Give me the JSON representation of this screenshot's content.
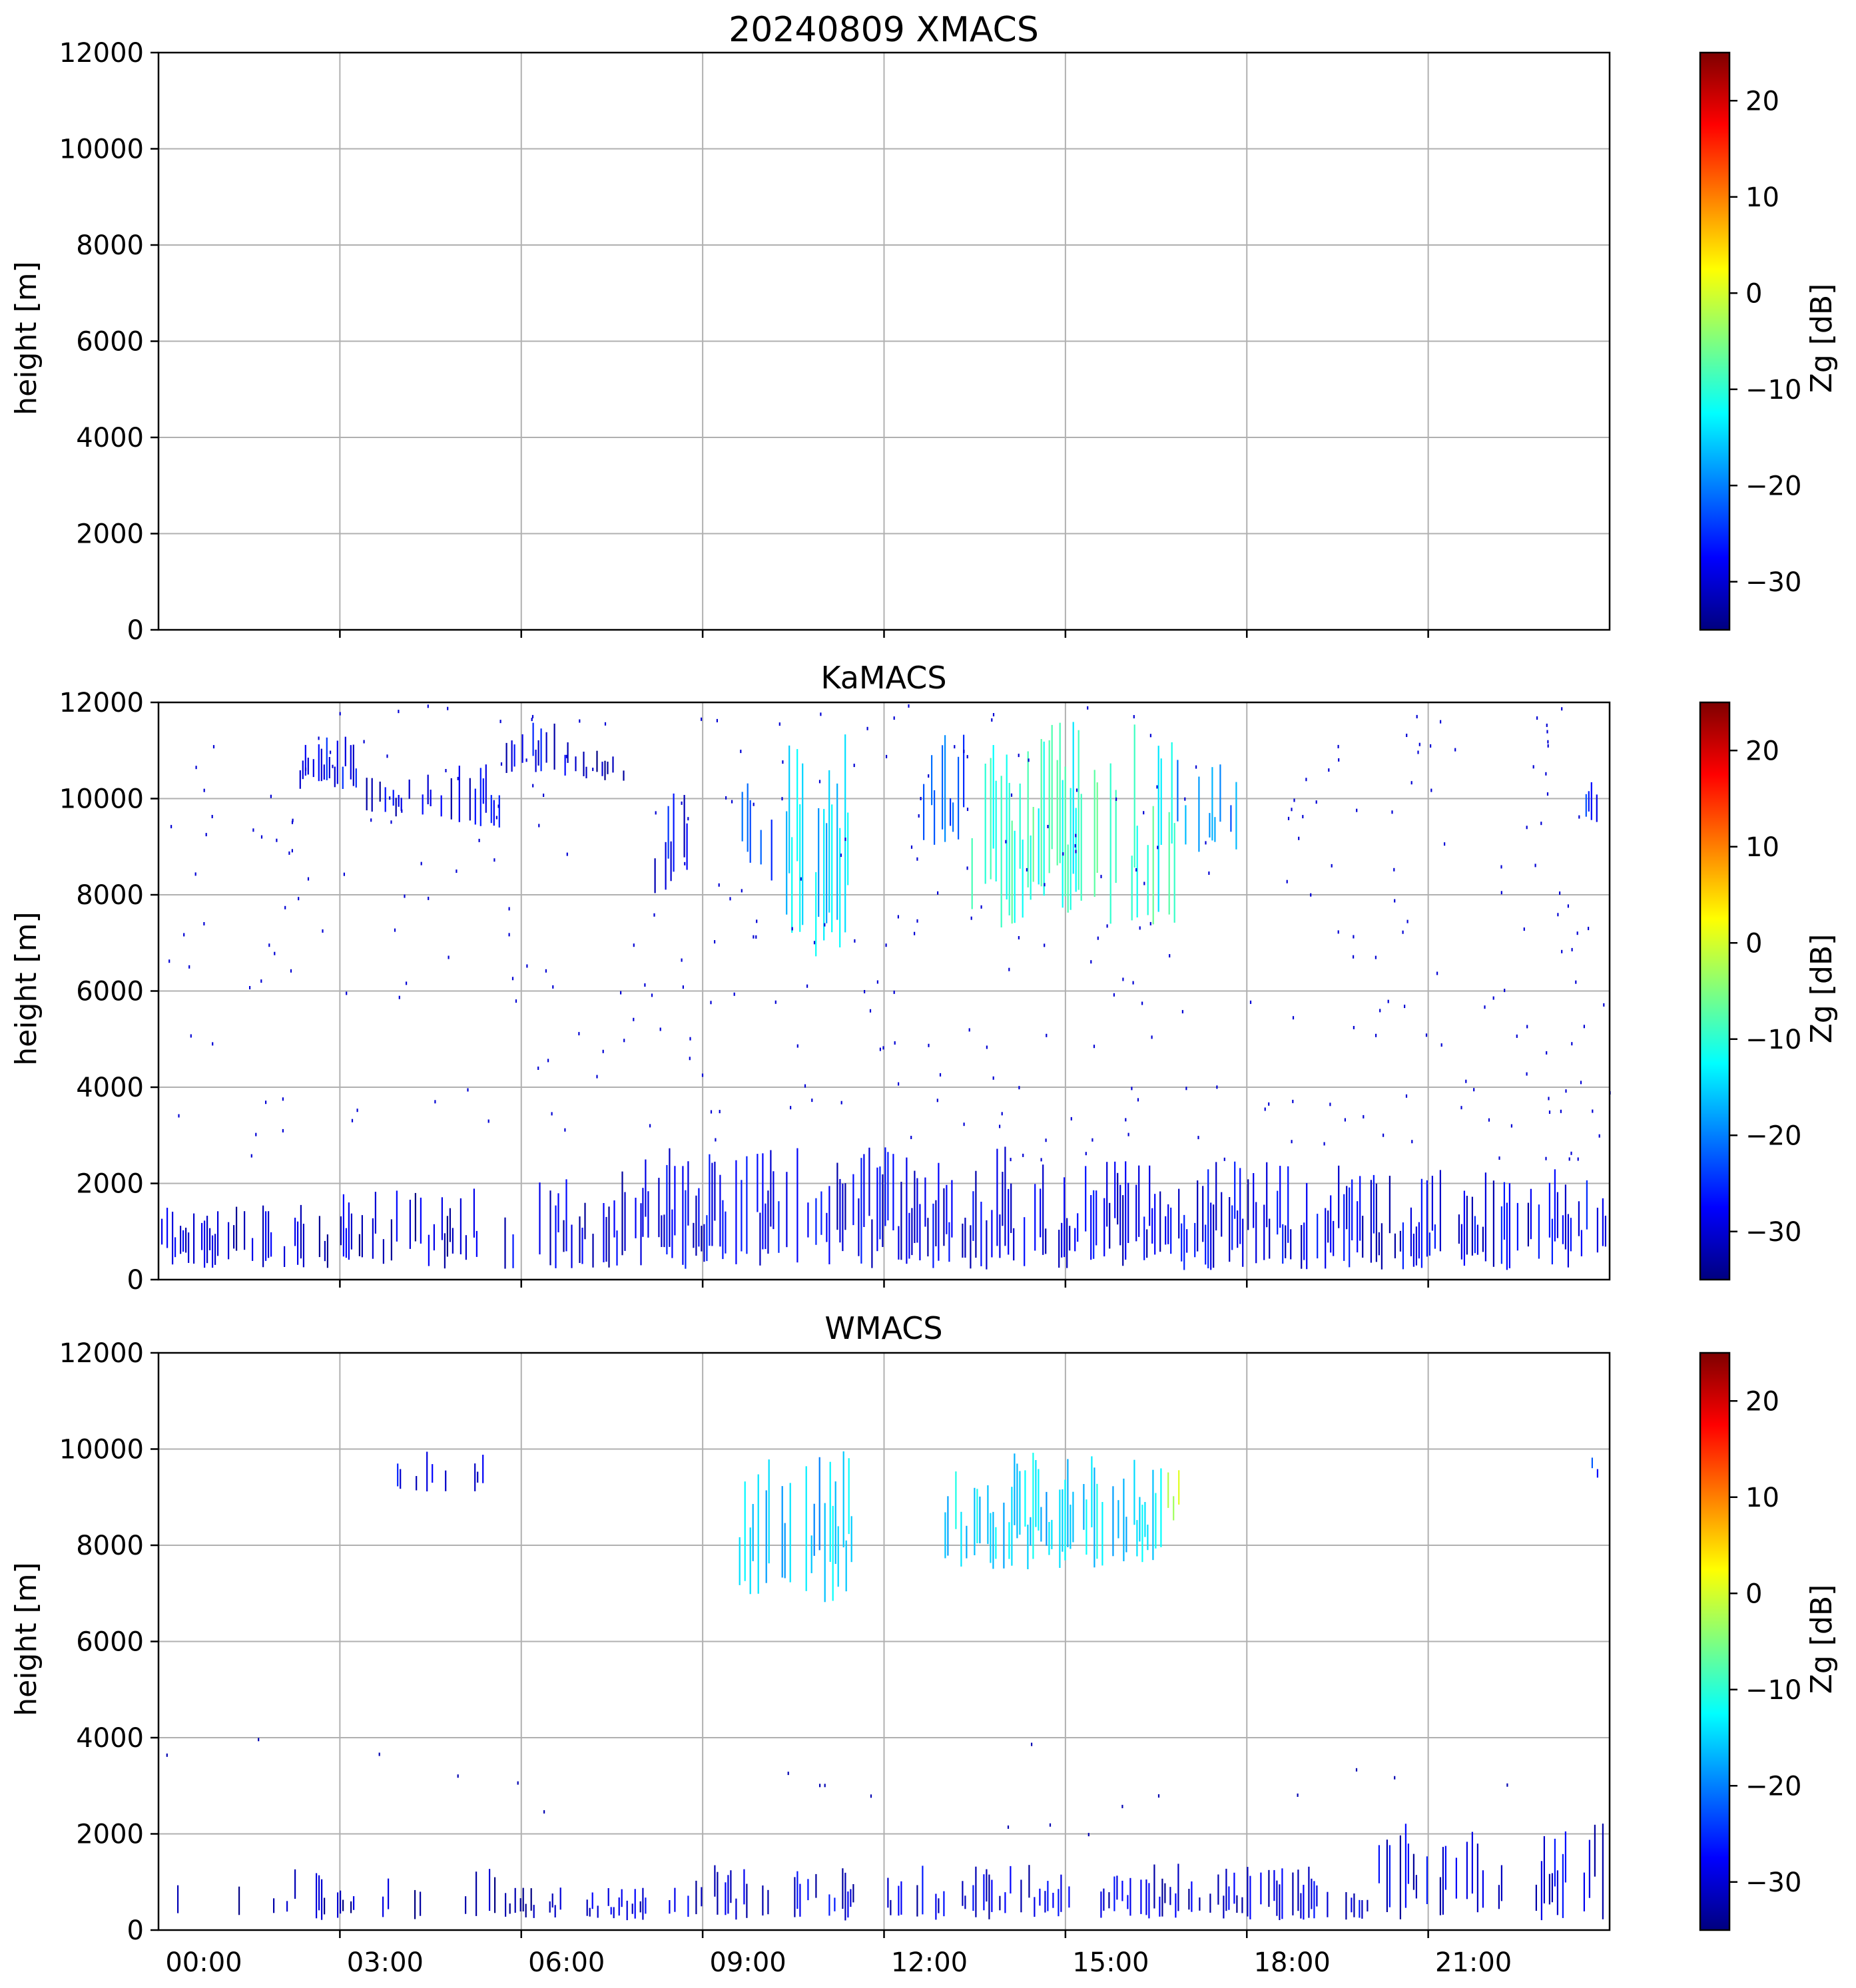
{
  "figure": {
    "colormap_name": "jet",
    "colormap_stops": [
      "#00007f",
      "#0000ff",
      "#007fff",
      "#00ffff",
      "#7fff7f",
      "#ffff00",
      "#ff7f00",
      "#ff0000",
      "#7f0000"
    ],
    "grid_color": "#b0b0b0",
    "background": "#ffffff"
  },
  "chart_data": [
    {
      "type": "heatmap",
      "title": "20240809 XMACS",
      "xlabel": "",
      "ylabel": "height [m]",
      "x_range": [
        "00:00",
        "24:00"
      ],
      "x_tick_labels": [],
      "ylim": [
        0,
        12000
      ],
      "y_ticks": [
        0,
        2000,
        4000,
        6000,
        8000,
        10000,
        12000
      ],
      "grid": true,
      "colorbar": {
        "label": "Zg [dB]",
        "range": [
          -35,
          25
        ],
        "ticks": [
          -30,
          -20,
          -10,
          0,
          10,
          20
        ]
      },
      "echo_regions": []
    },
    {
      "type": "heatmap",
      "title": "KaMACS",
      "xlabel": "",
      "ylabel": "height [m]",
      "x_range": [
        "00:00",
        "24:00"
      ],
      "x_tick_labels": [],
      "ylim": [
        0,
        12000
      ],
      "y_ticks": [
        0,
        2000,
        4000,
        6000,
        8000,
        10000,
        12000
      ],
      "grid": true,
      "colorbar": {
        "label": "Zg [dB]",
        "range": [
          -35,
          25
        ],
        "ticks": [
          -30,
          -20,
          -10,
          0,
          10,
          20
        ]
      },
      "echo_regions": [
        {
          "t_start": 0.0,
          "t_end": 2.3,
          "h_min": 200,
          "h_max": 1600,
          "dbz": -30,
          "density": 0.55
        },
        {
          "t_start": 2.3,
          "t_end": 5.5,
          "h_min": 200,
          "h_max": 1900,
          "dbz": -31,
          "density": 0.35
        },
        {
          "t_start": 5.5,
          "t_end": 8.0,
          "h_min": 200,
          "h_max": 2300,
          "dbz": -30,
          "density": 0.45
        },
        {
          "t_start": 8.0,
          "t_end": 14.0,
          "h_min": 200,
          "h_max": 2800,
          "dbz": -29,
          "density": 0.6
        },
        {
          "t_start": 14.0,
          "t_end": 20.0,
          "h_min": 200,
          "h_max": 2500,
          "dbz": -29,
          "density": 0.6
        },
        {
          "t_start": 20.0,
          "t_end": 24.0,
          "h_min": 200,
          "h_max": 2300,
          "dbz": -29,
          "density": 0.6
        },
        {
          "t_start": 2.2,
          "t_end": 3.3,
          "h_min": 10200,
          "h_max": 11300,
          "dbz": -28,
          "density": 0.6
        },
        {
          "t_start": 3.3,
          "t_end": 4.7,
          "h_min": 9600,
          "h_max": 10500,
          "dbz": -30,
          "density": 0.35
        },
        {
          "t_start": 4.7,
          "t_end": 5.7,
          "h_min": 9400,
          "h_max": 11000,
          "dbz": -29,
          "density": 0.4
        },
        {
          "t_start": 5.7,
          "t_end": 6.8,
          "h_min": 10400,
          "h_max": 11600,
          "dbz": -29,
          "density": 0.45
        },
        {
          "t_start": 6.8,
          "t_end": 7.7,
          "h_min": 10300,
          "h_max": 11000,
          "dbz": -31,
          "density": 0.3
        },
        {
          "t_start": 8.2,
          "t_end": 8.8,
          "h_min": 7800,
          "h_max": 10200,
          "dbz": -28,
          "density": 0.4
        },
        {
          "t_start": 9.6,
          "t_end": 10.2,
          "h_min": 8200,
          "h_max": 10900,
          "dbz": -24,
          "density": 0.45
        },
        {
          "t_start": 10.2,
          "t_end": 11.4,
          "h_min": 6700,
          "h_max": 11400,
          "dbz": -15,
          "density": 0.55
        },
        {
          "t_start": 12.6,
          "t_end": 13.4,
          "h_min": 9000,
          "h_max": 11500,
          "dbz": -22,
          "density": 0.45
        },
        {
          "t_start": 13.4,
          "t_end": 16.8,
          "h_min": 7300,
          "h_max": 11600,
          "dbz": -10,
          "density": 0.55
        },
        {
          "t_start": 16.8,
          "t_end": 17.9,
          "h_min": 8800,
          "h_max": 11000,
          "dbz": -20,
          "density": 0.4
        },
        {
          "t_start": 23.6,
          "t_end": 23.8,
          "h_min": 9400,
          "h_max": 10400,
          "dbz": -25,
          "density": 0.5
        }
      ],
      "scatter_noise": {
        "h_min": 2500,
        "h_max": 12000,
        "count": 360,
        "dbz": -30
      }
    },
    {
      "type": "heatmap",
      "title": "WMACS",
      "xlabel": "",
      "ylabel": "height [m]",
      "x_range": [
        "00:00",
        "24:00"
      ],
      "x_tick_labels": [
        "00:00",
        "03:00",
        "06:00",
        "09:00",
        "12:00",
        "15:00",
        "18:00",
        "21:00"
      ],
      "ylim": [
        0,
        12000
      ],
      "y_ticks": [
        0,
        2000,
        4000,
        6000,
        8000,
        10000,
        12000
      ],
      "grid": true,
      "colorbar": {
        "label": "Zg [dB]",
        "range": [
          -35,
          25
        ],
        "ticks": [
          -30,
          -20,
          -10,
          0,
          10,
          20
        ]
      },
      "echo_regions": [
        {
          "t_start": 0.0,
          "t_end": 5.8,
          "h_min": 200,
          "h_max": 1300,
          "dbz": -33,
          "density": 0.18
        },
        {
          "t_start": 5.8,
          "t_end": 8.0,
          "h_min": 200,
          "h_max": 900,
          "dbz": -31,
          "density": 0.35
        },
        {
          "t_start": 8.0,
          "t_end": 20.0,
          "h_min": 200,
          "h_max": 1400,
          "dbz": -30,
          "density": 0.45
        },
        {
          "t_start": 20.0,
          "t_end": 24.0,
          "h_min": 200,
          "h_max": 2300,
          "dbz": -30,
          "density": 0.35
        },
        {
          "t_start": 3.9,
          "t_end": 5.6,
          "h_min": 9100,
          "h_max": 10000,
          "dbz": -28,
          "density": 0.25
        },
        {
          "t_start": 9.6,
          "t_end": 11.5,
          "h_min": 6800,
          "h_max": 10000,
          "dbz": -16,
          "density": 0.5
        },
        {
          "t_start": 13.0,
          "t_end": 16.6,
          "h_min": 7500,
          "h_max": 10000,
          "dbz": -15,
          "density": 0.5
        },
        {
          "t_start": 16.6,
          "t_end": 16.9,
          "h_min": 8400,
          "h_max": 10000,
          "dbz": -2,
          "density": 0.6
        },
        {
          "t_start": 23.7,
          "t_end": 23.8,
          "h_min": 9400,
          "h_max": 9900,
          "dbz": -24,
          "density": 0.5
        }
      ],
      "scatter_noise": {
        "h_min": 2000,
        "h_max": 4000,
        "count": 20,
        "dbz": -32
      }
    }
  ]
}
